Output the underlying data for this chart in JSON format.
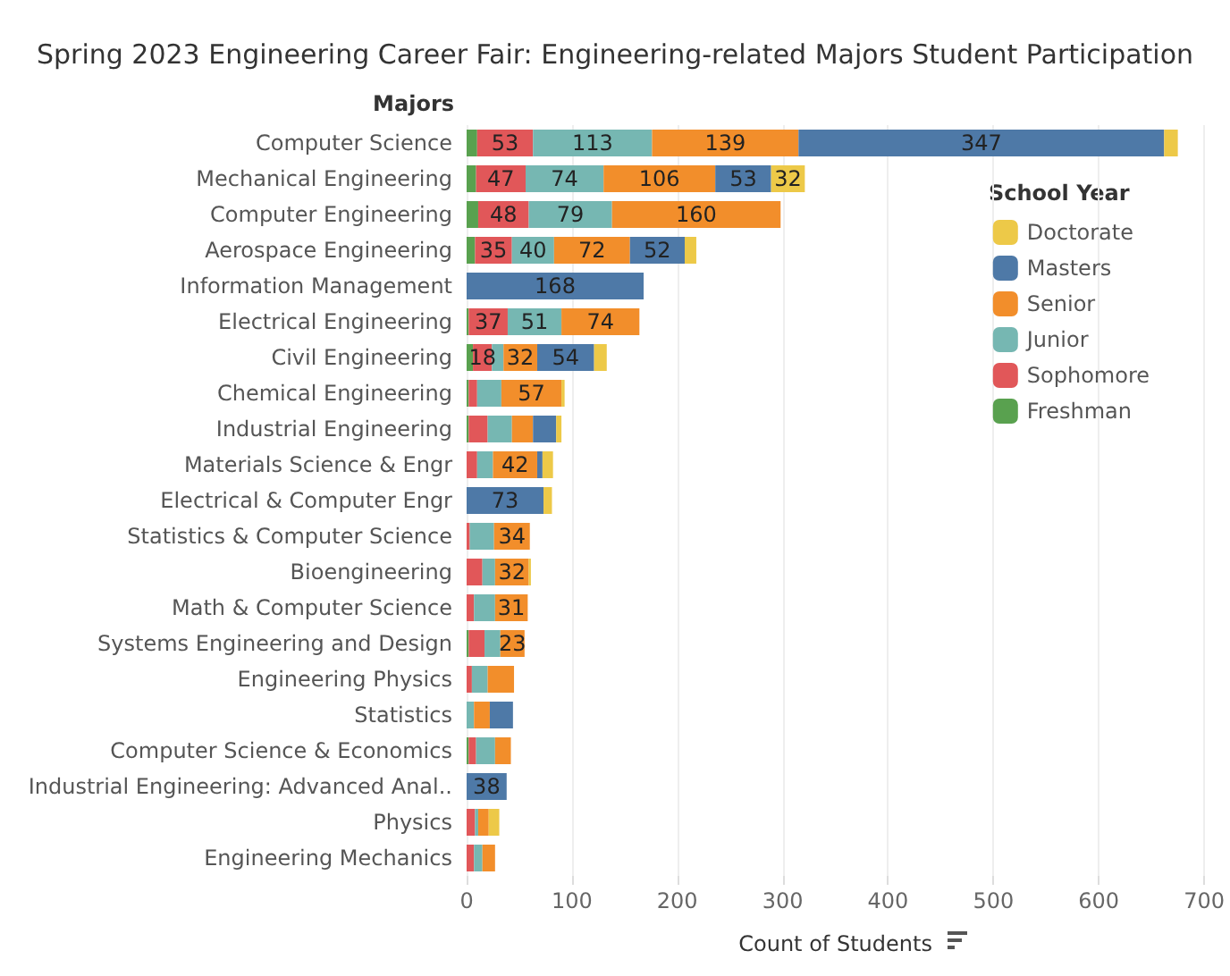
{
  "chart_data": {
    "type": "bar",
    "orientation": "horizontal",
    "stacked": true,
    "title": "Spring 2023 Engineering Career Fair: Engineering-related Majors Student Participation",
    "ylabel": "Majors",
    "xlabel": "Count of Students",
    "legend_title": "School Year",
    "categories": [
      "Computer Science",
      "Mechanical Engineering",
      "Computer Engineering",
      "Aerospace Engineering",
      "Information Management",
      "Electrical Engineering",
      "Civil Engineering",
      "Chemical Engineering",
      "Industrial Engineering",
      "Materials Science & Engr",
      "Electrical & Computer Engr",
      "Statistics & Computer Science",
      "Bioengineering",
      "Math & Computer Science",
      "Systems Engineering and Design",
      "Engineering Physics",
      "Statistics",
      "Computer Science & Economics",
      "Industrial Engineering: Advanced Anal..",
      "Physics",
      "Engineering Mechanics"
    ],
    "series": [
      {
        "name": "Freshman",
        "color": "#59a14f",
        "values": [
          10,
          9,
          11,
          8,
          null,
          2,
          6,
          2,
          2,
          null,
          null,
          null,
          null,
          null,
          2,
          null,
          null,
          2,
          null,
          null,
          null
        ]
      },
      {
        "name": "Sophomore",
        "color": "#e15759",
        "values": [
          53,
          47,
          48,
          35,
          null,
          37,
          18,
          8,
          18,
          10,
          null,
          3,
          15,
          7,
          15,
          5,
          null,
          7,
          null,
          8,
          7
        ],
        "value_labels": [
          "53",
          "47",
          "48",
          "35",
          null,
          "37",
          "18",
          null,
          null,
          null,
          null,
          null,
          null,
          null,
          null,
          null,
          null,
          null,
          null,
          null,
          null
        ]
      },
      {
        "name": "Junior",
        "color": "#76b7b2",
        "values": [
          113,
          74,
          79,
          40,
          null,
          51,
          11,
          23,
          23,
          15,
          null,
          23,
          12,
          20,
          15,
          15,
          7,
          18,
          null,
          3,
          8
        ],
        "value_labels": [
          "113",
          "74",
          "79",
          "40",
          null,
          "51",
          null,
          null,
          null,
          null,
          null,
          null,
          null,
          null,
          null,
          null,
          null,
          null,
          null,
          null,
          null
        ]
      },
      {
        "name": "Senior",
        "color": "#f28e2b",
        "values": [
          139,
          106,
          160,
          72,
          null,
          74,
          32,
          57,
          20,
          42,
          null,
          34,
          32,
          31,
          23,
          25,
          15,
          15,
          null,
          10,
          12
        ],
        "value_labels": [
          "139",
          "106",
          "160",
          "72",
          null,
          "74",
          "32",
          "57",
          null,
          "42",
          null,
          "34",
          "32",
          "31",
          "23",
          null,
          null,
          null,
          null,
          null,
          null
        ]
      },
      {
        "name": "Masters",
        "color": "#4e79a7",
        "values": [
          347,
          53,
          null,
          52,
          168,
          null,
          54,
          null,
          22,
          5,
          73,
          null,
          null,
          null,
          null,
          null,
          22,
          null,
          38,
          null,
          null
        ],
        "value_labels": [
          "347",
          "53",
          null,
          "52",
          "168",
          null,
          "54",
          null,
          null,
          null,
          "73",
          null,
          null,
          null,
          null,
          null,
          null,
          null,
          "38",
          null,
          null
        ]
      },
      {
        "name": "Doctorate",
        "color": "#edc948",
        "values": [
          13,
          32,
          null,
          11,
          null,
          null,
          12,
          3,
          5,
          10,
          8,
          null,
          2,
          null,
          null,
          null,
          null,
          null,
          null,
          10,
          null
        ],
        "value_labels": [
          null,
          "32",
          null,
          null,
          null,
          null,
          null,
          null,
          null,
          null,
          null,
          null,
          null,
          null,
          null,
          null,
          null,
          null,
          null,
          null,
          null
        ]
      }
    ],
    "xlim": [
      0,
      700
    ],
    "xticks": [
      0,
      100,
      200,
      300,
      400,
      500,
      600,
      700
    ],
    "grid": "x",
    "legend": "top right"
  }
}
